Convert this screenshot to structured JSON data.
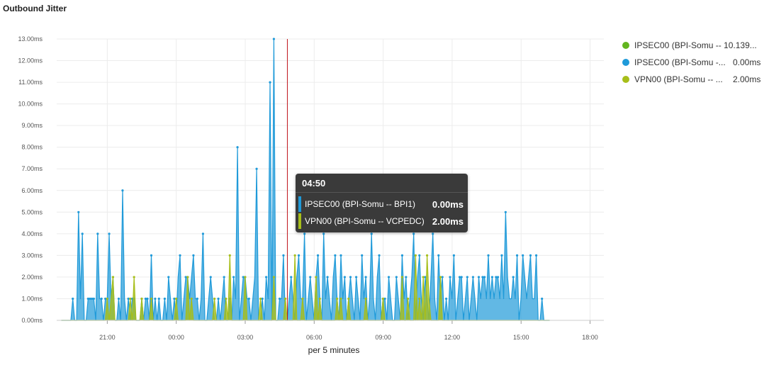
{
  "title": "Outbound Jitter",
  "colors": {
    "ipsec_green": "#62b51f",
    "ipsec_blue": "#1f9ad9",
    "vpn": "#a7be1a",
    "cursor": "#c0151b",
    "grid": "#ececec"
  },
  "legend": [
    {
      "label": "IPSEC00 (BPI-Somu -- 10.139...",
      "value": "",
      "color": "#62b51f"
    },
    {
      "label": "IPSEC00 (BPI-Somu -...",
      "value": "0.00ms",
      "color": "#1f9ad9"
    },
    {
      "label": "VPN00 (BPI-Somu -- ...",
      "value": "2.00ms",
      "color": "#a7be1a"
    }
  ],
  "tooltip": {
    "time": "04:50",
    "rows": [
      {
        "label": "IPSEC00 (BPI-Somu -- BPI1)",
        "value": "0.00ms",
        "color": "#1f9ad9"
      },
      {
        "label": "VPN00 (BPI-Somu -- VCPEDC)",
        "value": "2.00ms",
        "color": "#a7be1a"
      }
    ]
  },
  "chart_data": {
    "type": "area",
    "title": "Outbound Jitter",
    "xlabel": "per 5 minutes",
    "ylabel": "",
    "x_unit": "hours since 00:00 (5-minute samples, starting 19:00)",
    "xlim": [
      -5.2,
      18.6
    ],
    "ylim": [
      0,
      13
    ],
    "y_ticks": [
      "0.00ms",
      "1.00ms",
      "2.00ms",
      "3.00ms",
      "4.00ms",
      "5.00ms",
      "6.00ms",
      "7.00ms",
      "8.00ms",
      "9.00ms",
      "10.00ms",
      "11.00ms",
      "12.00ms",
      "13.00ms"
    ],
    "x_ticks": [
      "21:00",
      "00:00",
      "03:00",
      "06:00",
      "09:00",
      "12:00",
      "15:00",
      "18:00"
    ],
    "cursor_time": "04:50",
    "grid": true,
    "legend_position": "right",
    "series": [
      {
        "name": "IPSEC00 (BPI-Somu -- BPI1)",
        "color": "#1f9ad9",
        "x_start": -5.0,
        "x_step": 0.0833,
        "values": [
          0,
          0,
          0,
          0,
          0,
          0,
          1,
          0,
          0,
          5,
          1,
          4,
          0,
          0,
          1,
          1,
          1,
          1,
          0,
          4,
          1,
          1,
          0,
          1,
          1,
          4,
          1,
          2,
          0,
          0,
          1,
          0,
          6,
          1,
          0,
          1,
          0,
          1,
          1,
          0,
          0,
          0,
          1,
          0,
          1,
          1,
          0,
          3,
          0,
          1,
          0,
          1,
          0,
          0,
          1,
          0,
          2,
          1,
          0,
          1,
          0,
          2,
          3,
          0,
          1,
          2,
          2,
          1,
          2,
          3,
          1,
          1,
          0,
          1,
          4,
          0,
          0,
          1,
          2,
          1,
          0,
          0,
          1,
          0,
          1,
          2,
          0,
          0,
          1,
          0,
          2,
          1,
          8,
          0,
          1,
          2,
          2,
          1,
          1,
          0,
          1,
          2,
          7,
          0,
          0,
          1,
          0,
          2,
          1,
          11,
          0,
          13,
          0,
          0,
          1,
          1,
          3,
          0,
          0,
          1,
          2,
          1,
          0,
          2,
          3,
          1,
          1,
          4,
          0,
          1,
          2,
          1,
          0,
          2,
          3,
          1,
          0,
          4,
          1,
          2,
          1,
          0,
          2,
          3,
          1,
          0,
          3,
          1,
          2,
          0,
          1,
          2,
          1,
          0,
          2,
          1,
          0,
          3,
          1,
          2,
          0,
          1,
          4,
          1,
          0,
          2,
          3,
          0,
          1,
          1,
          0,
          2,
          1,
          0,
          0,
          2,
          1,
          0,
          3,
          1,
          2,
          0,
          1,
          2,
          4,
          0,
          2,
          3,
          1,
          0,
          2,
          1,
          0,
          2,
          4,
          1,
          0,
          3,
          1,
          2,
          0,
          1,
          0,
          2,
          1,
          3,
          0,
          1,
          2,
          2,
          0,
          1,
          2,
          0,
          1,
          2,
          1,
          0,
          2,
          1,
          2,
          2,
          1,
          3,
          1,
          2,
          1,
          2,
          2,
          1,
          3,
          1,
          5,
          2,
          1,
          1,
          2,
          1,
          3,
          0,
          1,
          3,
          2,
          1,
          2,
          3,
          1,
          1,
          3,
          0,
          0,
          1,
          0,
          0,
          0,
          0
        ]
      },
      {
        "name": "VPN00 (BPI-Somu -- VCPEDC)",
        "color": "#a7be1a",
        "x_start": -5.0,
        "x_step": 0.0833,
        "values": [
          0,
          0,
          0,
          0,
          0,
          0,
          0,
          0,
          0,
          0,
          0,
          0,
          0,
          0,
          0,
          0,
          0,
          0,
          0,
          0,
          0,
          0,
          0,
          0,
          1,
          0,
          1,
          2,
          0,
          0,
          0,
          0,
          0,
          0,
          0,
          0,
          1,
          0,
          2,
          0,
          0,
          0,
          1,
          0,
          0,
          0,
          0,
          1,
          0,
          0,
          0,
          0,
          0,
          0,
          0,
          0,
          0,
          0,
          0,
          0,
          1,
          0,
          0,
          0,
          0,
          0,
          2,
          0,
          1,
          0,
          0,
          0,
          0,
          0,
          0,
          0,
          0,
          0,
          0,
          0,
          1,
          0,
          0,
          0,
          0,
          0,
          1,
          0,
          3,
          0,
          0,
          0,
          0,
          0,
          0,
          0,
          2,
          0,
          0,
          0,
          0,
          0,
          0,
          0,
          1,
          0,
          0,
          0,
          0,
          0,
          0,
          2,
          0,
          0,
          0,
          0,
          0,
          1,
          0,
          0,
          0,
          0,
          3,
          0,
          0,
          0,
          1,
          0,
          0,
          0,
          0,
          0,
          0,
          2,
          0,
          1,
          0,
          0,
          0,
          0,
          0,
          0,
          0,
          0,
          1,
          0,
          1,
          0,
          0,
          0,
          1,
          0,
          0,
          0,
          0,
          0,
          0,
          0,
          0,
          1,
          0,
          0,
          0,
          0,
          0,
          0,
          0,
          0,
          1,
          0,
          0,
          0,
          0,
          0,
          0,
          0,
          0,
          0,
          2,
          0,
          0,
          1,
          0,
          0,
          0,
          3,
          0,
          1,
          0,
          2,
          0,
          3,
          1,
          0,
          0,
          0,
          0,
          0,
          2,
          0,
          0,
          0,
          0,
          0,
          0,
          0,
          0,
          0,
          0,
          0,
          0,
          0,
          0,
          0,
          0,
          0,
          0,
          0,
          0,
          0,
          0,
          0,
          0,
          0,
          0,
          0,
          0,
          0,
          0,
          0,
          0,
          0,
          0,
          0,
          0,
          0,
          0,
          0,
          0,
          0,
          0,
          0,
          0,
          0,
          0,
          0,
          0,
          0,
          0,
          0,
          0,
          0,
          0,
          0,
          0,
          0
        ]
      }
    ]
  }
}
